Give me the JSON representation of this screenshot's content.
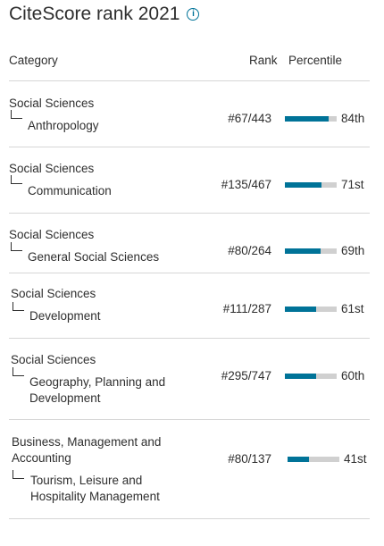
{
  "title": "CiteScore rank 2021",
  "headers": {
    "category": "Category",
    "rank": "Rank",
    "percentile": "Percentile"
  },
  "colors": {
    "accent": "#007398",
    "bar_track": "#d0d0d0"
  },
  "icons": {
    "info": "info-circle-icon"
  },
  "rows": [
    {
      "parent": "Social Sciences",
      "child": "Anthropology",
      "rank": "#67/443",
      "percentile_label": "84th",
      "percentile": 84
    },
    {
      "parent": "Social Sciences",
      "child": "Communication",
      "rank": "#135/467",
      "percentile_label": "71st",
      "percentile": 71
    },
    {
      "parent": "Social Sciences",
      "child": "General Social Sciences",
      "rank": "#80/264",
      "percentile_label": "69th",
      "percentile": 69
    },
    {
      "parent": "Social Sciences",
      "child": "Development",
      "rank": "#111/287",
      "percentile_label": "61st",
      "percentile": 61
    },
    {
      "parent": "Social Sciences",
      "child": "Geography, Planning and Development",
      "rank": "#295/747",
      "percentile_label": "60th",
      "percentile": 60
    },
    {
      "parent": "Business, Management and Accounting",
      "child": "Tourism, Leisure and Hospitality Management",
      "rank": "#80/137",
      "percentile_label": "41st",
      "percentile": 41
    }
  ]
}
